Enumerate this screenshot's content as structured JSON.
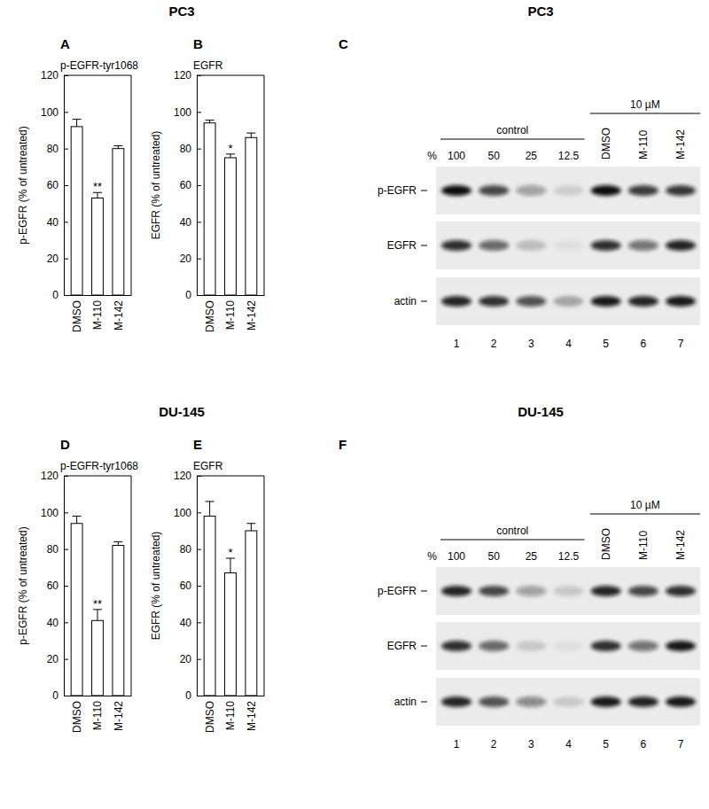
{
  "headers": [
    "PC3",
    "PC3",
    "DU-145",
    "DU-145"
  ],
  "chart_data": [
    {
      "type": "bar",
      "panel": "A",
      "title": "p-EGFR-tyr1068",
      "y_label": "p-EGFR (% of untreated)",
      "categories": [
        "DMSO",
        "M-110",
        "M-142"
      ],
      "values": [
        92,
        53,
        80
      ],
      "errors": [
        4,
        3,
        1.5
      ],
      "annotations": [
        null,
        "**",
        null
      ],
      "color": "#ffffff",
      "ylim": [
        0,
        120
      ],
      "yticks": [
        0,
        20,
        40,
        60,
        80,
        100,
        120
      ]
    },
    {
      "type": "bar",
      "panel": "B",
      "title": "EGFR",
      "y_label": "EGFR (% of untreated)",
      "categories": [
        "DMSO",
        "M-110",
        "M-142"
      ],
      "values": [
        94,
        75,
        86
      ],
      "errors": [
        1.5,
        2,
        2.5
      ],
      "annotations": [
        null,
        "*",
        null
      ],
      "color": "#ffffff",
      "ylim": [
        0,
        120
      ],
      "yticks": [
        0,
        20,
        40,
        60,
        80,
        100,
        120
      ]
    },
    {
      "type": "blot",
      "panel": "C",
      "unit_label": "%",
      "groups": [
        {
          "label": "control",
          "lanes": [
            "100",
            "50",
            "25",
            "12.5"
          ]
        },
        {
          "label": "10 µM",
          "lanes": [
            "DMSO",
            "M-110",
            "M-142"
          ]
        }
      ],
      "lane_numbers": [
        1,
        2,
        3,
        4,
        5,
        6,
        7
      ],
      "rows": [
        {
          "name": "p-EGFR",
          "intensity": [
            1,
            0.75,
            0.35,
            0.12,
            1,
            0.8,
            0.82
          ]
        },
        {
          "name": "EGFR",
          "intensity": [
            0.85,
            0.6,
            0.2,
            0.05,
            0.85,
            0.55,
            0.9
          ]
        },
        {
          "name": "actin",
          "intensity": [
            0.9,
            0.85,
            0.7,
            0.3,
            0.95,
            0.9,
            0.95
          ]
        }
      ]
    },
    {
      "type": "bar",
      "panel": "D",
      "title": "p-EGFR-tyr1068",
      "y_label": "p-EGFR (% of untreated)",
      "categories": [
        "DMSO",
        "M-110",
        "M-142"
      ],
      "values": [
        94,
        41,
        82
      ],
      "errors": [
        4,
        6,
        2
      ],
      "annotations": [
        null,
        "**",
        null
      ],
      "color": "#ffffff",
      "ylim": [
        0,
        120
      ],
      "yticks": [
        0,
        20,
        40,
        60,
        80,
        100,
        120
      ]
    },
    {
      "type": "bar",
      "panel": "E",
      "title": "EGFR",
      "y_label": "EGFR (% of untreated)",
      "categories": [
        "DMSO",
        "M-110",
        "M-142"
      ],
      "values": [
        98,
        67,
        90
      ],
      "errors": [
        8,
        8,
        4
      ],
      "annotations": [
        null,
        "*",
        null
      ],
      "color": "#ffffff",
      "ylim": [
        0,
        120
      ],
      "yticks": [
        0,
        20,
        40,
        60,
        80,
        100,
        120
      ]
    },
    {
      "type": "blot",
      "panel": "F",
      "unit_label": "%",
      "groups": [
        {
          "label": "control",
          "lanes": [
            "100",
            "50",
            "25",
            "12.5"
          ]
        },
        {
          "label": "10 µM",
          "lanes": [
            "DMSO",
            "M-110",
            "M-142"
          ]
        }
      ],
      "lane_numbers": [
        1,
        2,
        3,
        4,
        5,
        6,
        7
      ],
      "rows": [
        {
          "name": "p-EGFR",
          "intensity": [
            0.9,
            0.75,
            0.35,
            0.15,
            0.9,
            0.75,
            0.85
          ]
        },
        {
          "name": "EGFR",
          "intensity": [
            0.85,
            0.6,
            0.15,
            0.05,
            0.85,
            0.55,
            0.95
          ]
        },
        {
          "name": "actin",
          "intensity": [
            0.9,
            0.7,
            0.45,
            0.15,
            0.95,
            0.9,
            0.95
          ]
        }
      ]
    }
  ]
}
